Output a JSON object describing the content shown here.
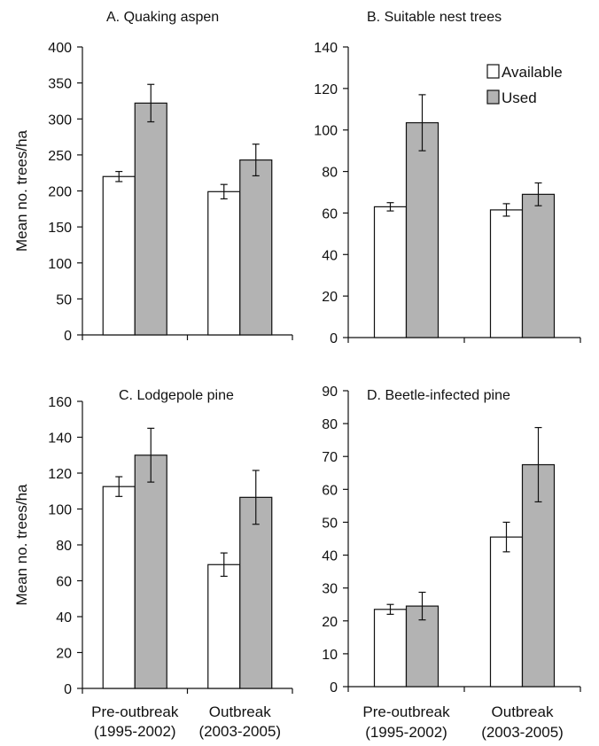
{
  "colors": {
    "available": "#ffffff",
    "used": "#b3b3b3",
    "stroke": "#111111"
  },
  "chart_data": [
    {
      "type": "bar",
      "title": "A. Quaking aspen",
      "ylabel": "Mean no. trees/ha",
      "ylim": [
        0,
        400
      ],
      "yticks": [
        0,
        50,
        100,
        150,
        200,
        250,
        300,
        350,
        400
      ],
      "categories": [
        "Pre-outbreak (1995-2002)",
        "Outbreak (2003-2005)"
      ],
      "series": [
        {
          "name": "Available",
          "values": [
            220,
            199
          ],
          "errors": [
            7,
            10
          ]
        },
        {
          "name": "Used",
          "values": [
            322,
            243
          ],
          "errors": [
            26,
            22
          ]
        }
      ]
    },
    {
      "type": "bar",
      "title": "B. Suitable nest trees",
      "ylabel": "",
      "ylim": [
        0,
        140
      ],
      "yticks": [
        0,
        20,
        40,
        60,
        80,
        100,
        120,
        140
      ],
      "legend": "top-right",
      "categories": [
        "Pre-outbreak (1995-2002)",
        "Outbreak (2003-2005)"
      ],
      "series": [
        {
          "name": "Available",
          "values": [
            63,
            61.5
          ],
          "errors": [
            2,
            3
          ]
        },
        {
          "name": "Used",
          "values": [
            103.5,
            69
          ],
          "errors": [
            13.5,
            5.5
          ]
        }
      ]
    },
    {
      "type": "bar",
      "title": "C. Lodgepole pine",
      "ylabel": "Mean no. trees/ha",
      "ylim": [
        0,
        160
      ],
      "yticks": [
        0,
        20,
        40,
        60,
        80,
        100,
        120,
        140,
        160
      ],
      "categories": [
        "Pre-outbreak (1995-2002)",
        "Outbreak (2003-2005)"
      ],
      "series": [
        {
          "name": "Available",
          "values": [
            112.5,
            69
          ],
          "errors": [
            5.5,
            6.5
          ]
        },
        {
          "name": "Used",
          "values": [
            130,
            106.5
          ],
          "errors": [
            15,
            15
          ]
        }
      ]
    },
    {
      "type": "bar",
      "title": "D. Beetle-infected pine",
      "ylabel": "",
      "ylim": [
        0,
        90
      ],
      "yticks": [
        0,
        10,
        20,
        30,
        40,
        50,
        60,
        70,
        80,
        90
      ],
      "categories": [
        "Pre-outbreak (1995-2002)",
        "Outbreak (2003-2005)"
      ],
      "series": [
        {
          "name": "Available",
          "values": [
            23.5,
            45.5
          ],
          "errors": [
            1.5,
            4.5
          ]
        },
        {
          "name": "Used",
          "values": [
            24.5,
            67.5
          ],
          "errors": [
            4.2,
            11.3
          ]
        }
      ]
    }
  ],
  "x_axis_labels": [
    {
      "line1": "Pre-outbreak",
      "line2": "(1995-2002)"
    },
    {
      "line1": "Outbreak",
      "line2": "(2003-2005)"
    }
  ]
}
